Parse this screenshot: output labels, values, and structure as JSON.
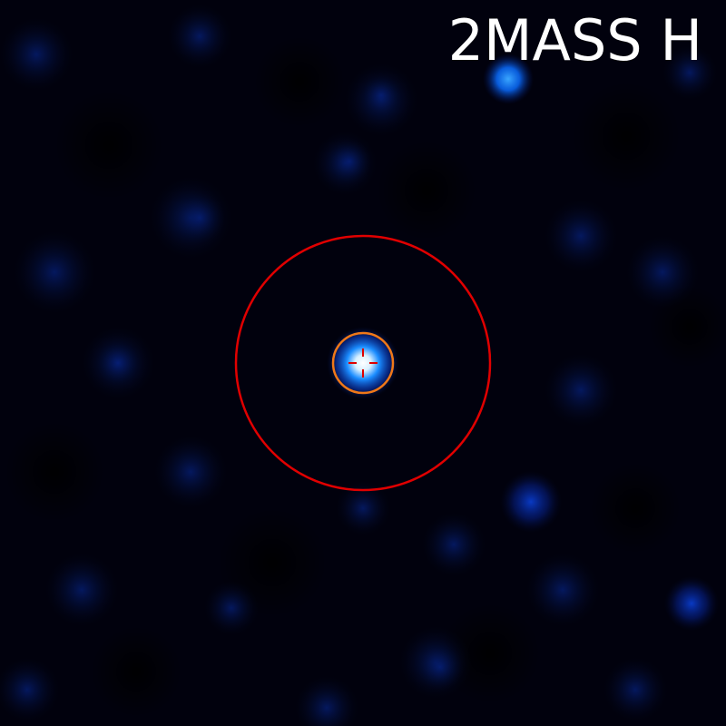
{
  "image": {
    "band_label": "2MASS H",
    "colors": {
      "background": "#01010d",
      "source_core": "#ffffff",
      "source_glow": "#0a6cff",
      "search_circle": "#e00000",
      "aperture_circle": "#f07818",
      "reticle": "#e00000",
      "label": "#ffffff"
    }
  }
}
